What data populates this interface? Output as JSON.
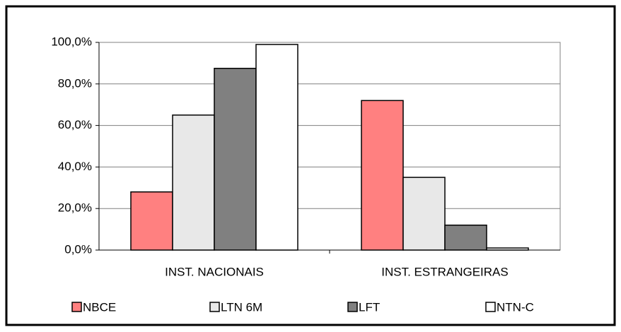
{
  "chart_data": {
    "type": "bar",
    "categories": [
      "INST. NACIONAIS",
      "INST. ESTRANGEIRAS"
    ],
    "series": [
      {
        "name": "NBCE",
        "color": "#ff8080",
        "values": [
          28,
          72
        ]
      },
      {
        "name": "LTN 6M",
        "color": "#e8e8e8",
        "values": [
          65,
          35
        ]
      },
      {
        "name": "LFT",
        "color": "#808080",
        "values": [
          87.5,
          12
        ]
      },
      {
        "name": "NTN-C",
        "color": "#ffffff",
        "values": [
          99,
          1
        ]
      }
    ],
    "ylim": [
      0,
      100
    ],
    "yticks": [
      {
        "value": 0,
        "label": "0,0%"
      },
      {
        "value": 20,
        "label": "20,0%"
      },
      {
        "value": 40,
        "label": "40,0%"
      },
      {
        "value": 60,
        "label": "60,0%"
      },
      {
        "value": 80,
        "label": "80,0%"
      },
      {
        "value": 100,
        "label": "100,0%"
      }
    ],
    "grid": true,
    "legend": "bottom"
  }
}
